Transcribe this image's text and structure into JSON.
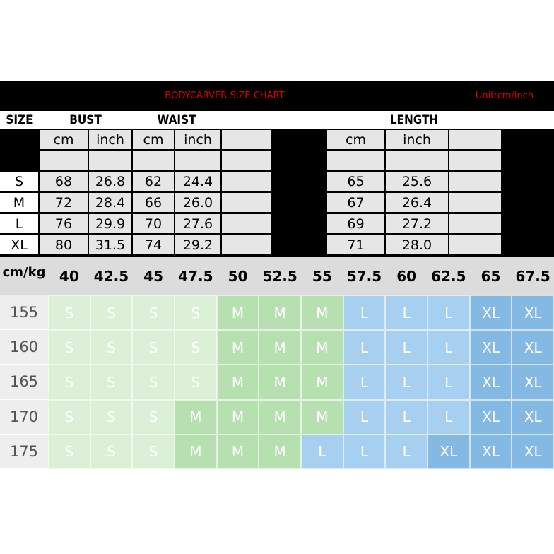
{
  "header": {
    "title": "BODYCARVER SIZE CHART",
    "unit": "Unit:cm/inch"
  },
  "size_table": {
    "headers": [
      "SIZE",
      "BUST",
      "WAIST",
      "LENGTH"
    ],
    "units": [
      "cm",
      "inch",
      "cm",
      "inch",
      "cm",
      "inch"
    ],
    "rows": [
      [
        "S",
        "68",
        "26.8",
        "62",
        "24.4",
        "65",
        "25.6"
      ],
      [
        "M",
        "72",
        "28.4",
        "66",
        "26.0",
        "67",
        "26.4"
      ],
      [
        "L",
        "76",
        "29.9",
        "70",
        "27.6",
        "69",
        "27.2"
      ],
      [
        "XL",
        "80",
        "31.5",
        "74",
        "29.2",
        "71",
        "28.0"
      ]
    ]
  },
  "fit_grid": {
    "corner": "cm/kg",
    "weights": [
      "40",
      "42.5",
      "45",
      "47.5",
      "50",
      "52.5",
      "55",
      "57.5",
      "60",
      "62.5",
      "65",
      "67.5"
    ],
    "colors": {
      "S": "#dbf0d7",
      "M": "#b7e0b1",
      "L": "#a7cff0",
      "XL": "#84b9e4"
    },
    "rows": [
      {
        "height": "155",
        "sizes": [
          "S",
          "S",
          "S",
          "S",
          "M",
          "M",
          "M",
          "L",
          "L",
          "L",
          "XL",
          "XL"
        ]
      },
      {
        "height": "160",
        "sizes": [
          "S",
          "S",
          "S",
          "S",
          "M",
          "M",
          "M",
          "L",
          "L",
          "L",
          "XL",
          "XL"
        ]
      },
      {
        "height": "165",
        "sizes": [
          "S",
          "S",
          "S",
          "S",
          "M",
          "M",
          "M",
          "L",
          "L",
          "L",
          "XL",
          "XL"
        ]
      },
      {
        "height": "170",
        "sizes": [
          "S",
          "S",
          "S",
          "M",
          "M",
          "M",
          "M",
          "L",
          "L",
          "L",
          "XL",
          "XL"
        ]
      },
      {
        "height": "175",
        "sizes": [
          "S",
          "S",
          "S",
          "M",
          "M",
          "M",
          "L",
          "L",
          "L",
          "XL",
          "XL",
          "XL"
        ]
      }
    ]
  }
}
